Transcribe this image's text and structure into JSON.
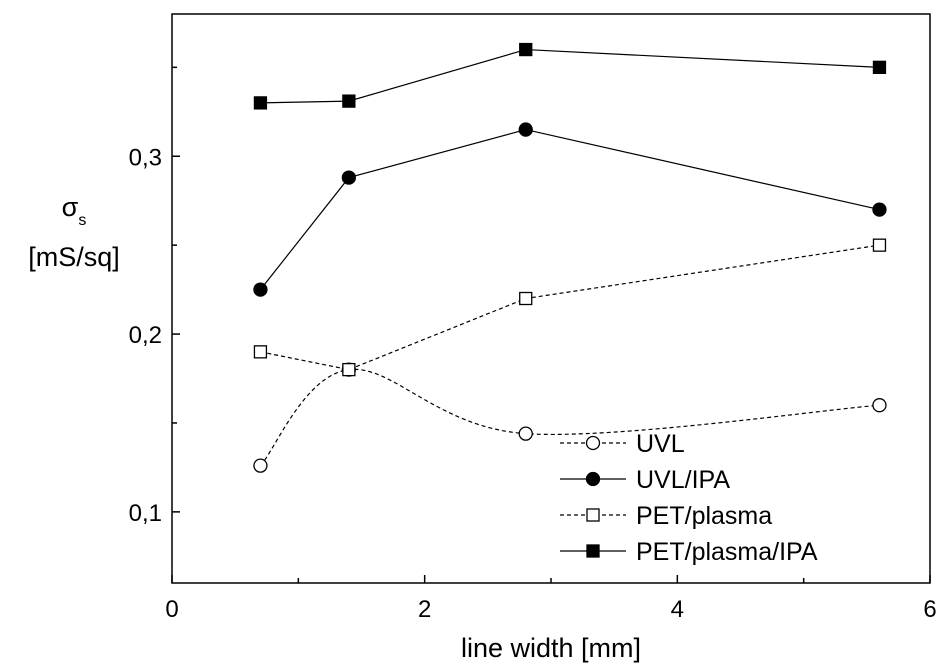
{
  "chart_data": {
    "type": "line",
    "title": "",
    "xlabel": "line width [mm]",
    "ylabel": {
      "symbol": "σ",
      "subscript": "s",
      "unit": "[mS/sq]"
    },
    "xlim": [
      0,
      6
    ],
    "ylim": [
      0.06,
      0.38
    ],
    "xticks": [
      0,
      2,
      4,
      6
    ],
    "xtick_labels": [
      "0",
      "2",
      "4",
      "6"
    ],
    "yticks": [
      0.1,
      0.2,
      0.3
    ],
    "ytick_labels": [
      "0,1",
      "0,2",
      "0,3"
    ],
    "grid": false,
    "legend_position": "bottom-right",
    "series": [
      {
        "name": "UVL",
        "x": [
          0.7,
          1.4,
          2.8,
          5.6
        ],
        "y": [
          0.126,
          0.18,
          0.144,
          0.16
        ],
        "marker": "circle-open",
        "line": "dashed-smooth",
        "color": "#000000"
      },
      {
        "name": "UVL/IPA",
        "x": [
          0.7,
          1.4,
          2.8,
          5.6
        ],
        "y": [
          0.225,
          0.288,
          0.315,
          0.27
        ],
        "marker": "circle-filled",
        "line": "solid",
        "color": "#000000"
      },
      {
        "name": "PET/plasma",
        "x": [
          0.7,
          1.4,
          2.8,
          5.6
        ],
        "y": [
          0.19,
          0.18,
          0.22,
          0.25
        ],
        "marker": "square-open",
        "line": "dashed",
        "color": "#000000"
      },
      {
        "name": "PET/plasma/IPA",
        "x": [
          0.7,
          1.4,
          2.8,
          5.6
        ],
        "y": [
          0.33,
          0.331,
          0.36,
          0.35
        ],
        "marker": "square-filled",
        "line": "solid",
        "color": "#000000"
      }
    ]
  }
}
